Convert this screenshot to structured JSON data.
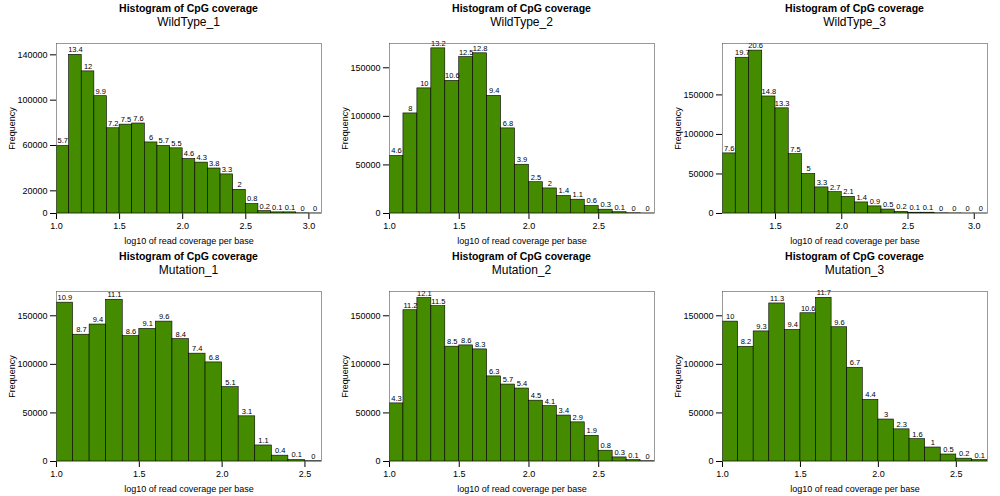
{
  "chart_data": [
    {
      "type": "histogram",
      "title": "Histogram of CpG coverage",
      "subtitle": "WildType_1",
      "x_label": "log10 of read coverage per base",
      "y_label": "Frequency",
      "color": "#458b00",
      "bins": [
        1.0,
        1.1,
        1.2,
        1.3,
        1.4,
        1.5,
        1.6,
        1.7,
        1.8,
        1.9,
        2.0,
        2.1,
        2.2,
        2.3,
        2.4,
        2.5,
        2.6,
        2.7,
        2.8,
        2.9,
        3.0,
        3.1
      ],
      "values": [
        59600,
        140000,
        125400,
        103500,
        75200,
        78400,
        79400,
        62700,
        59600,
        57500,
        48100,
        44900,
        39700,
        34500,
        20900,
        8400,
        2100,
        1000,
        1000,
        200,
        100
      ],
      "percentages": [
        5.7,
        13.4,
        12,
        9.9,
        7.2,
        7.5,
        7.6,
        6,
        5.7,
        5.5,
        4.6,
        4.3,
        3.8,
        3.3,
        2,
        0.8,
        0.2,
        0.1,
        0.1,
        0,
        0
      ],
      "xlim": [
        1.0,
        3.1
      ],
      "ylim": [
        0,
        150000
      ],
      "xticks": [
        {
          "value": 1.0,
          "label": "1.0"
        },
        1.5,
        {
          "value": 2.0,
          "label": "2.0"
        },
        2.5,
        {
          "value": 3.0,
          "label": "3.0"
        }
      ],
      "yticks": [
        0,
        20000,
        60000,
        100000,
        140000
      ]
    },
    {
      "type": "histogram",
      "title": "Histogram of CpG coverage",
      "subtitle": "WildType_2",
      "x_label": "log10 of read coverage per base",
      "y_label": "Frequency",
      "color": "#458b00",
      "bins": [
        1.0,
        1.1,
        1.2,
        1.3,
        1.4,
        1.5,
        1.6,
        1.7,
        1.8,
        1.9,
        2.0,
        2.1,
        2.2,
        2.3,
        2.4,
        2.5,
        2.6,
        2.7,
        2.8,
        2.9
      ],
      "values": [
        59200,
        103000,
        128800,
        170000,
        136500,
        161000,
        164900,
        121100,
        87600,
        50200,
        32200,
        25800,
        18000,
        14200,
        7700,
        3900,
        1300,
        300,
        100
      ],
      "percentages": [
        4.6,
        8,
        10,
        13.2,
        10.6,
        12.5,
        12.8,
        9.4,
        6.8,
        3.9,
        2.5,
        2,
        1.4,
        1.1,
        0.6,
        0.3,
        0.1,
        0,
        0
      ],
      "xlim": [
        1.0,
        2.9
      ],
      "ylim": [
        0,
        175000
      ],
      "xticks": [
        {
          "value": 1.0,
          "label": "1.0"
        },
        1.5,
        {
          "value": 2.0,
          "label": "2.0"
        },
        2.5
      ],
      "yticks": [
        0,
        50000,
        100000,
        150000
      ]
    },
    {
      "type": "histogram",
      "title": "Histogram of CpG coverage",
      "subtitle": "WildType_3",
      "x_label": "log10 of read coverage per base",
      "y_label": "Frequency",
      "color": "#458b00",
      "bins": [
        1.1,
        1.2,
        1.3,
        1.4,
        1.5,
        1.6,
        1.7,
        1.8,
        1.9,
        2.0,
        2.1,
        2.2,
        2.3,
        2.4,
        2.5,
        2.6,
        2.7,
        2.8,
        2.9,
        3.0,
        3.1
      ],
      "values": [
        76000,
        197000,
        206000,
        148000,
        133000,
        75000,
        50000,
        33000,
        27000,
        21000,
        14000,
        9000,
        5000,
        2000,
        1000,
        1000,
        300,
        200,
        100,
        100
      ],
      "percentages": [
        7.6,
        19.7,
        20.6,
        14.8,
        13.3,
        7.5,
        5,
        3.3,
        2.7,
        2.1,
        1.4,
        0.9,
        0.5,
        0.2,
        0.1,
        0.1,
        0,
        0,
        0,
        0
      ],
      "xlim": [
        1.1,
        3.1
      ],
      "ylim": [
        0,
        215000
      ],
      "xticks": [
        1.5,
        {
          "value": 2.0,
          "label": "2.0"
        },
        2.5,
        {
          "value": 3.0,
          "label": "3.0"
        }
      ],
      "yticks": [
        0,
        50000,
        100000,
        150000
      ]
    },
    {
      "type": "histogram",
      "title": "Histogram of CpG coverage",
      "subtitle": "Mutation_1",
      "x_label": "log10 of read coverage per base",
      "y_label": "Frequency",
      "color": "#458b00",
      "bins": [
        1.0,
        1.1,
        1.2,
        1.3,
        1.4,
        1.5,
        1.6,
        1.7,
        1.8,
        1.9,
        2.0,
        2.1,
        2.2,
        2.3,
        2.4,
        2.5,
        2.6
      ],
      "values": [
        163500,
        130500,
        141000,
        166500,
        129000,
        136500,
        144000,
        126000,
        111000,
        102000,
        76500,
        46500,
        16500,
        6000,
        1500,
        300
      ],
      "percentages": [
        10.9,
        8.7,
        9.4,
        11.1,
        8.6,
        9.1,
        9.6,
        8.4,
        7.4,
        6.8,
        5.1,
        3.1,
        1.1,
        0.4,
        0.1,
        0
      ],
      "xlim": [
        1.0,
        2.6
      ],
      "ylim": [
        0,
        175000
      ],
      "xticks": [
        {
          "value": 1.0,
          "label": "1.0"
        },
        1.5,
        {
          "value": 2.0,
          "label": "2.0"
        },
        2.5
      ],
      "yticks": [
        0,
        50000,
        100000,
        150000
      ]
    },
    {
      "type": "histogram",
      "title": "Histogram of CpG coverage",
      "subtitle": "Mutation_2",
      "x_label": "log10 of read coverage per base",
      "y_label": "Frequency",
      "color": "#458b00",
      "bins": [
        1.0,
        1.1,
        1.2,
        1.3,
        1.4,
        1.5,
        1.6,
        1.7,
        1.8,
        1.9,
        2.0,
        2.1,
        2.2,
        2.3,
        2.4,
        2.5,
        2.6,
        2.7,
        2.8,
        2.9
      ],
      "values": [
        59800,
        155700,
        168200,
        159900,
        118200,
        119500,
        115400,
        87600,
        79200,
        75100,
        62600,
        57000,
        47300,
        40300,
        26400,
        11100,
        4200,
        1400,
        300
      ],
      "percentages": [
        4.3,
        11.2,
        12.1,
        11.5,
        8.5,
        8.6,
        8.3,
        6.3,
        5.7,
        5.4,
        4.5,
        4.1,
        3.4,
        2.9,
        1.9,
        0.8,
        0.3,
        0.1,
        0
      ],
      "xlim": [
        1.0,
        2.9
      ],
      "ylim": [
        0,
        175000
      ],
      "xticks": [
        {
          "value": 1.0,
          "label": "1.0"
        },
        1.5,
        {
          "value": 2.0,
          "label": "2.0"
        },
        2.5
      ],
      "yticks": [
        0,
        50000,
        100000,
        150000
      ]
    },
    {
      "type": "histogram",
      "title": "Histogram of CpG coverage",
      "subtitle": "Mutation_3",
      "x_label": "log10 of read coverage per base",
      "y_label": "Frequency",
      "color": "#458b00",
      "bins": [
        1.0,
        1.1,
        1.2,
        1.3,
        1.4,
        1.5,
        1.6,
        1.7,
        1.8,
        1.9,
        2.0,
        2.1,
        2.2,
        2.3,
        2.4,
        2.5,
        2.6,
        2.7
      ],
      "values": [
        144000,
        118100,
        133900,
        162700,
        135400,
        152600,
        168500,
        138200,
        96500,
        63400,
        43200,
        33100,
        23000,
        14400,
        7200,
        2900,
        1400
      ],
      "percentages": [
        10,
        8.2,
        9.3,
        11.3,
        9.4,
        10.6,
        11.7,
        9.6,
        6.7,
        4.4,
        3,
        2.3,
        1.6,
        1,
        0.5,
        0.2,
        0.1
      ],
      "xlim": [
        1.0,
        2.7
      ],
      "ylim": [
        0,
        175000
      ],
      "xticks": [
        {
          "value": 1.0,
          "label": "1.0"
        },
        1.5,
        {
          "value": 2.0,
          "label": "2.0"
        },
        2.5
      ],
      "yticks": [
        0,
        50000,
        100000,
        150000
      ]
    }
  ]
}
